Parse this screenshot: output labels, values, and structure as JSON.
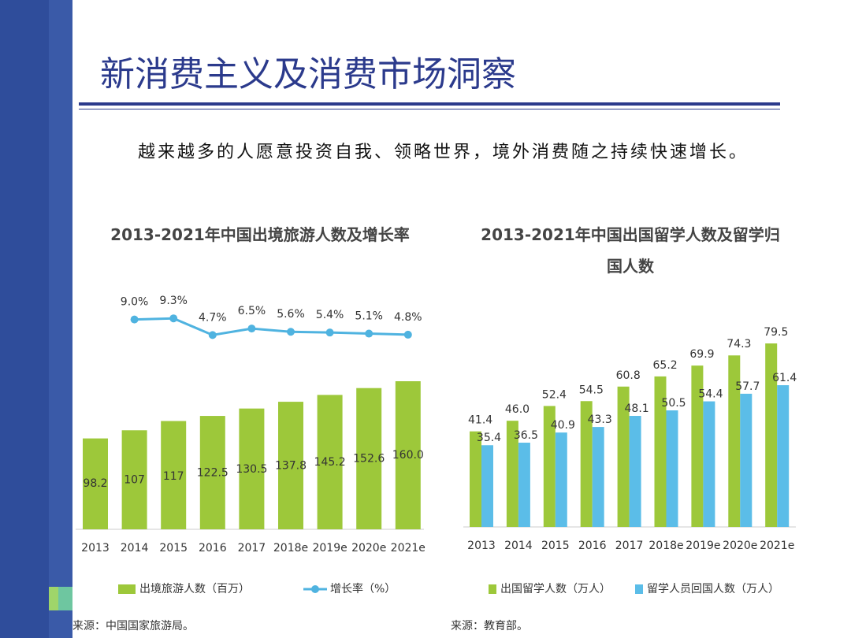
{
  "title": "新消费主义及消费市场洞察",
  "subtitle": "越来越多的人愿意投资自我、领略世界，境外消费随之持续快速增长。",
  "chart_data": [
    {
      "type": "bar",
      "title": "2013-2021年中国出境旅游人数及增长率",
      "categories": [
        "2013",
        "2014",
        "2015",
        "2016",
        "2017",
        "2018e",
        "2019e",
        "2020e",
        "2021e"
      ],
      "series": [
        {
          "name": "出境旅游人数（百万）",
          "color": "#9dc83a",
          "values": [
            98.2,
            107,
            117,
            122.5,
            130.5,
            137.8,
            145.2,
            152.6,
            160
          ],
          "value_labels": [
            "98.2",
            "107",
            "117",
            "122.5",
            "130.5",
            "137.8",
            "145.2",
            "152.6",
            "160.0"
          ]
        },
        {
          "name": "增长率（%）",
          "type": "line",
          "color": "#4fb3e0",
          "values": [
            null,
            9.0,
            9.3,
            4.7,
            6.5,
            5.6,
            5.4,
            5.1,
            4.8
          ],
          "value_labels": [
            null,
            "9.0%",
            "9.3%",
            "4.7%",
            "6.5%",
            "5.6%",
            "5.4%",
            "5.1%",
            "4.8%"
          ]
        }
      ],
      "source": "来源：中国国家旅游局。"
    },
    {
      "type": "bar",
      "title": "2013-2021年中国出国留学人数及留学归国人数",
      "categories": [
        "2013",
        "2014",
        "2015",
        "2016",
        "2017",
        "2018e",
        "2019e",
        "2020e",
        "2021e"
      ],
      "series": [
        {
          "name": "出国留学人数（万人）",
          "color": "#9dc83a",
          "values": [
            41.4,
            46.0,
            52.4,
            54.5,
            60.8,
            65.2,
            69.9,
            74.3,
            79.5
          ],
          "value_labels": [
            "41.4",
            "46.0",
            "52.4",
            "54.5",
            "60.8",
            "65.2",
            "69.9",
            "74.3",
            "79.5"
          ]
        },
        {
          "name": "留学人员回国人数（万人）",
          "color": "#5bbde8",
          "values": [
            35.4,
            36.5,
            40.9,
            43.3,
            48.1,
            50.5,
            54.4,
            57.7,
            61.4
          ]
        }
      ],
      "source": "来源：教育部。"
    }
  ]
}
